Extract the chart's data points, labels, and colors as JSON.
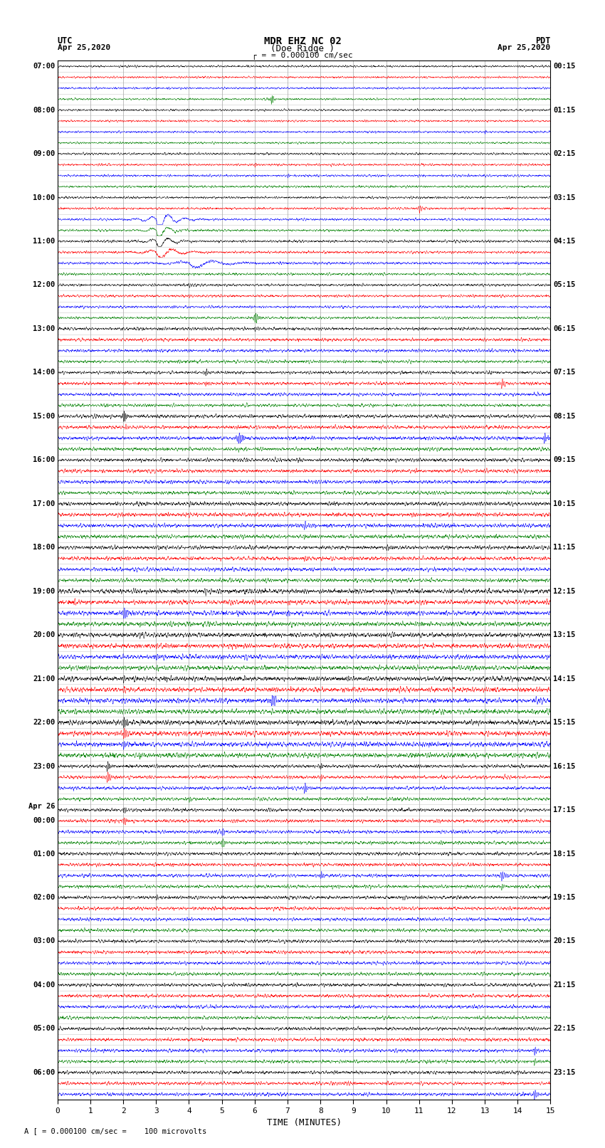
{
  "title_line1": "MDR EHZ NC 02",
  "title_line2": "(Doe Ridge )",
  "scale_label": "= 0.000100 cm/sec",
  "left_date_line1": "UTC",
  "left_date_line2": "Apr 25,2020",
  "right_date_line1": "PDT",
  "right_date_line2": "Apr 25,2020",
  "bottom_label": "A [ = 0.000100 cm/sec =    100 microvolts",
  "xlabel": "TIME (MINUTES)",
  "left_times": [
    "07:00",
    "",
    "",
    "",
    "08:00",
    "",
    "",
    "",
    "09:00",
    "",
    "",
    "",
    "10:00",
    "",
    "",
    "",
    "11:00",
    "",
    "",
    "",
    "12:00",
    "",
    "",
    "",
    "13:00",
    "",
    "",
    "",
    "14:00",
    "",
    "",
    "",
    "15:00",
    "",
    "",
    "",
    "16:00",
    "",
    "",
    "",
    "17:00",
    "",
    "",
    "",
    "18:00",
    "",
    "",
    "",
    "19:00",
    "",
    "",
    "",
    "20:00",
    "",
    "",
    "",
    "21:00",
    "",
    "",
    "",
    "22:00",
    "",
    "",
    "",
    "23:00",
    "",
    "",
    "",
    "Apr 26",
    "00:00",
    "",
    "",
    "01:00",
    "",
    "",
    "",
    "02:00",
    "",
    "",
    "",
    "03:00",
    "",
    "",
    "",
    "04:00",
    "",
    "",
    "",
    "05:00",
    "",
    "",
    "",
    "06:00",
    "",
    ""
  ],
  "right_times": [
    "00:15",
    "",
    "",
    "",
    "01:15",
    "",
    "",
    "",
    "02:15",
    "",
    "",
    "",
    "03:15",
    "",
    "",
    "",
    "04:15",
    "",
    "",
    "",
    "05:15",
    "",
    "",
    "",
    "06:15",
    "",
    "",
    "",
    "07:15",
    "",
    "",
    "",
    "08:15",
    "",
    "",
    "",
    "09:15",
    "",
    "",
    "",
    "10:15",
    "",
    "",
    "",
    "11:15",
    "",
    "",
    "",
    "12:15",
    "",
    "",
    "",
    "13:15",
    "",
    "",
    "",
    "14:15",
    "",
    "",
    "",
    "15:15",
    "",
    "",
    "",
    "16:15",
    "",
    "",
    "",
    "17:15",
    "",
    "",
    "",
    "18:15",
    "",
    "",
    "",
    "19:15",
    "",
    "",
    "",
    "20:15",
    "",
    "",
    "",
    "21:15",
    "",
    "",
    "",
    "22:15",
    "",
    "",
    "",
    "23:15",
    "",
    ""
  ],
  "n_rows": 95,
  "n_cols": 15,
  "row_colors": [
    "black",
    "red",
    "blue",
    "green"
  ],
  "bg_color": "white",
  "grid_color": "#aaaaaa",
  "seed": 42
}
